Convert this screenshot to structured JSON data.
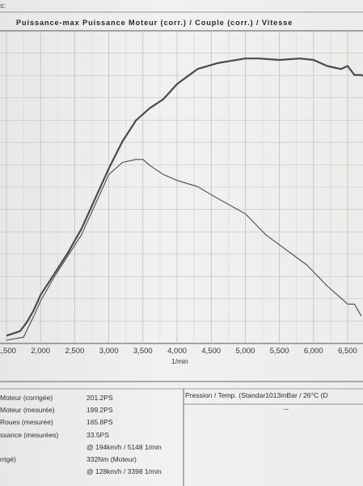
{
  "header": {
    "fragment": "s:"
  },
  "chart_data": {
    "type": "line",
    "title": "Puissance-max Puissance Moteur (corr.) / Couple (corr.) / Vitesse",
    "xlabel": "1/min",
    "ylabel": "",
    "xlim": [
      1500,
      6800
    ],
    "ylim": [
      0,
      1
    ],
    "xticks": [
      1500,
      2000,
      2500,
      3000,
      3500,
      4000,
      4500,
      5000,
      5500,
      6000,
      6500
    ],
    "xtick_labels": [
      "1,500",
      "2,000",
      "2,500",
      "3,000",
      "3,500",
      "4,000",
      "4,500",
      "5,000",
      "5,500",
      "6,000",
      "6,500"
    ],
    "grid": true,
    "series": [
      {
        "color": "#4a4a4a",
        "x": [
          1500,
          1700,
          1800,
          1900,
          2000,
          2200,
          2400,
          2600,
          2800,
          3000,
          3200,
          3400,
          3600,
          3800,
          4000,
          4300,
          4600,
          5000,
          5200,
          5500,
          5800,
          6000,
          6200,
          6400,
          6500,
          6600,
          6700,
          6800
        ],
        "y": [
          0.015,
          0.03,
          0.06,
          0.1,
          0.15,
          0.22,
          0.29,
          0.37,
          0.47,
          0.57,
          0.66,
          0.73,
          0.77,
          0.8,
          0.85,
          0.9,
          0.92,
          0.935,
          0.935,
          0.93,
          0.935,
          0.93,
          0.91,
          0.9,
          0.91,
          0.88,
          0.88,
          0.87
        ]
      },
      {
        "color": "#4a4a4a",
        "x": [
          1500,
          1750,
          1900,
          2000,
          2200,
          2400,
          2600,
          2800,
          3000,
          3200,
          3400,
          3500,
          3600,
          3800,
          4000,
          4300,
          4600,
          5000,
          5300,
          5600,
          5900,
          6200,
          6400,
          6500,
          6600,
          6700
        ],
        "y": [
          0.0,
          0.01,
          0.08,
          0.13,
          0.21,
          0.28,
          0.35,
          0.45,
          0.55,
          0.59,
          0.6,
          0.6,
          0.58,
          0.55,
          0.53,
          0.51,
          0.47,
          0.42,
          0.35,
          0.3,
          0.25,
          0.18,
          0.14,
          0.12,
          0.12,
          0.08
        ]
      }
    ]
  },
  "results": {
    "rows": [
      {
        "label": "Moteur (corrigée)",
        "value": "201.2PS"
      },
      {
        "label": "Moteur (mesurée)",
        "value": "199.2PS"
      },
      {
        "label": "Roues (mesurée)",
        "value": "165.8PS"
      },
      {
        "label": "ssance (mesurées)",
        "value": "33.5PS"
      },
      {
        "label": "",
        "value": "@ 194km/h / 5148 1/min"
      },
      {
        "label": "rrigé)",
        "value": "332Nm (Moteur)"
      },
      {
        "label": "",
        "value": "@ 128km/h / 3398 1/min"
      }
    ],
    "pressure_label": "Pression / Temp. (Standar1013mBar / 26°C   (D",
    "pressure_value": "--"
  }
}
